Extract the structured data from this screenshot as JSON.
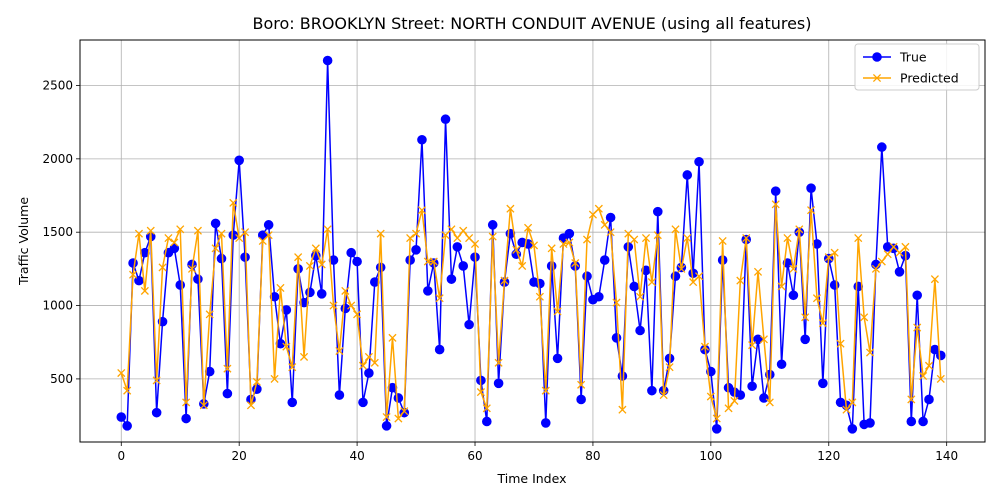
{
  "chart_data": {
    "type": "line",
    "title": "Boro: BROOKLYN Street: NORTH CONDUIT AVENUE (using all features)",
    "xlabel": "Time Index",
    "ylabel": "Traffic Volume",
    "xlim": [
      -7,
      146.5
    ],
    "ylim": [
      70,
      2810
    ],
    "xticks": [
      0,
      20,
      40,
      60,
      80,
      100,
      120,
      140
    ],
    "yticks": [
      500,
      1000,
      1500,
      2000,
      2500
    ],
    "grid": true,
    "legend_position": "top-right",
    "series": [
      {
        "name": "True",
        "color": "#0000ff",
        "marker": "circle",
        "values": [
          240,
          180,
          1290,
          1170,
          1360,
          1470,
          270,
          890,
          1360,
          1390,
          1140,
          230,
          1280,
          1180,
          330,
          550,
          1560,
          1320,
          400,
          1480,
          1990,
          1330,
          360,
          430,
          1480,
          1550,
          1060,
          740,
          970,
          340,
          1250,
          1020,
          1090,
          1340,
          1080,
          2670,
          1310,
          390,
          980,
          1360,
          1300,
          340,
          540,
          1160,
          1260,
          180,
          440,
          370,
          270,
          1310,
          1380,
          2130,
          1100,
          1290,
          700,
          2270,
          1180,
          1400,
          1270,
          870,
          1330,
          490,
          210,
          1550,
          470,
          1160,
          1490,
          1350,
          1430,
          1420,
          1160,
          1150,
          200,
          1270,
          640,
          1460,
          1490,
          1270,
          360,
          1200,
          1040,
          1060,
          1310,
          1600,
          780,
          520,
          1400,
          1130,
          830,
          1240,
          420,
          1640,
          420,
          640,
          1200,
          1260,
          1890,
          1220,
          1980,
          700,
          550,
          160,
          1310,
          440,
          410,
          390,
          1450,
          450,
          770,
          370,
          530,
          1780,
          600,
          1290,
          1070,
          1500,
          770,
          1800,
          1420,
          470,
          1320,
          1140,
          340,
          320,
          160,
          1130,
          190,
          200,
          1280,
          2080,
          1400,
          1390,
          1230,
          1340,
          210,
          1070,
          210,
          360,
          700,
          660
        ]
      },
      {
        "name": "Predicted",
        "color": "#ffa500",
        "marker": "x",
        "values": [
          540,
          420,
          1210,
          1490,
          1100,
          1510,
          490,
          1260,
          1460,
          1430,
          1520,
          340,
          1250,
          1510,
          320,
          940,
          1390,
          1490,
          570,
          1700,
          1460,
          1500,
          320,
          480,
          1440,
          1480,
          500,
          1120,
          720,
          580,
          1330,
          650,
          1270,
          1390,
          1280,
          1520,
          1000,
          690,
          1100,
          1000,
          940,
          590,
          650,
          610,
          1490,
          240,
          780,
          230,
          280,
          1460,
          1490,
          1650,
          1300,
          1300,
          1050,
          1480,
          1520,
          1460,
          1510,
          1460,
          1420,
          410,
          300,
          1470,
          610,
          1170,
          1660,
          1380,
          1270,
          1530,
          1410,
          1060,
          420,
          1390,
          960,
          1420,
          1430,
          1290,
          460,
          1450,
          1620,
          1660,
          1550,
          1500,
          1020,
          290,
          1490,
          1450,
          1060,
          1460,
          1160,
          1480,
          390,
          580,
          1520,
          1250,
          1460,
          1160,
          1200,
          720,
          380,
          230,
          1440,
          300,
          350,
          1170,
          1460,
          730,
          1230,
          770,
          340,
          1690,
          1130,
          1460,
          1250,
          1520,
          920,
          1650,
          1050,
          880,
          1330,
          1360,
          740,
          290,
          340,
          1460,
          920,
          680,
          1250,
          1300,
          1350,
          1400,
          1360,
          1400,
          360,
          850,
          520,
          590,
          1180,
          500
        ]
      }
    ]
  }
}
